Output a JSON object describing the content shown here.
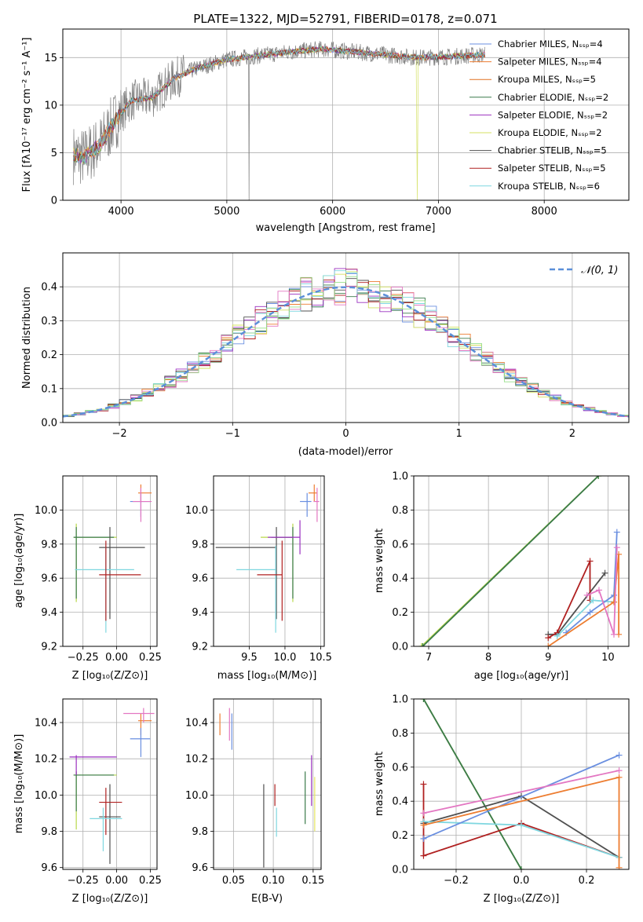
{
  "chart_data": [
    {
      "type": "line",
      "title": "PLATE=1322, MJD=52791, FIBERID=0178, z=0.071",
      "xlabel": "wavelength [Angstrom, rest frame]",
      "ylabel": "Flux [fλ10⁻¹⁷ erg cm⁻² s⁻¹ A⁻¹]",
      "xlim": [
        3450,
        8800
      ],
      "ylim": [
        0,
        18
      ],
      "xticks": [
        4000,
        5000,
        6000,
        7000,
        8000
      ],
      "yticks": [
        0,
        5,
        10,
        15
      ],
      "spectrum_anchor_points": {
        "x": [
          3550,
          3650,
          3800,
          3950,
          4100,
          4300,
          4500,
          4700,
          5000,
          5300,
          5600,
          5900,
          6200,
          6500,
          6800,
          7100,
          7400
        ],
        "y": [
          4.8,
          4.5,
          5.8,
          8.5,
          10.5,
          10.8,
          12.8,
          13.8,
          14.8,
          15.2,
          15.6,
          15.9,
          15.6,
          15.3,
          15.0,
          15.1,
          15.3
        ]
      },
      "legend_position": "upper right",
      "series": [
        {
          "name": "Chabrier MILES, Nₛₛₚ=4",
          "color": "#6a8fe0"
        },
        {
          "name": "Salpeter MILES, Nₛₛₚ=4",
          "color": "#ed7d31"
        },
        {
          "name": "Kroupa MILES, Nₛₛₚ=5",
          "color": "#e07020"
        },
        {
          "name": "Chabrier ELODIE, Nₛₛₚ=2",
          "color": "#3a7a4a"
        },
        {
          "name": "Salpeter ELODIE, Nₛₛₚ=2",
          "color": "#9b30c0"
        },
        {
          "name": "Kroupa ELODIE, Nₛₛₚ=2",
          "color": "#d4e060"
        },
        {
          "name": "Chabrier STELIB, Nₛₛₚ=5",
          "color": "#505050"
        },
        {
          "name": "Salpeter STELIB, Nₛₛₚ=5",
          "color": "#b02020"
        },
        {
          "name": "Kroupa STELIB, Nₛₛₚ=6",
          "color": "#7fd7e0"
        }
      ]
    },
    {
      "type": "histogram",
      "xlabel": "(data-model)/error",
      "ylabel": "Normed distribution",
      "xlim": [
        -2.5,
        2.5
      ],
      "ylim": [
        0,
        0.5
      ],
      "xticks": [
        -2,
        -1,
        0,
        1,
        2
      ],
      "yticks": [
        0.0,
        0.1,
        0.2,
        0.3,
        0.4
      ],
      "bin_width": 0.1,
      "legend": "𝒩(0, 1)",
      "normal_curve": {
        "mean": 0,
        "std": 1,
        "color": "#5b8fd9"
      },
      "series_colors": [
        "#6a8fe0",
        "#ed7d31",
        "#3a7a4a",
        "#9b30c0",
        "#d4e060",
        "#505050",
        "#b02020",
        "#7fd7e0",
        "#e377c2",
        "#98df8a"
      ]
    },
    {
      "type": "errorbar",
      "xlabel": "Z [log₁₀(Z/Z⊙)]",
      "ylabel": "age  [log₁₀(age/yr)]",
      "xlim": [
        -0.4,
        0.3
      ],
      "ylim": [
        9.2,
        10.2
      ],
      "xticks": [
        -0.25,
        0.0,
        0.25
      ],
      "yticks": [
        9.2,
        9.4,
        9.6,
        9.8,
        10.0
      ],
      "points": [
        {
          "x": -0.3,
          "y": 9.84,
          "xerr": [
            0.02,
            0.3
          ],
          "yerr": [
            0.38,
            0.08
          ],
          "color": "#b8d84a"
        },
        {
          "x": -0.3,
          "y": 9.84,
          "xerr": [
            0.02,
            0.28
          ],
          "yerr": [
            0.36,
            0.06
          ],
          "color": "#3a7a4a"
        },
        {
          "x": -0.05,
          "y": 9.78,
          "xerr": [
            0.08,
            0.26
          ],
          "yerr": [
            0.42,
            0.12
          ],
          "color": "#505050"
        },
        {
          "x": -0.08,
          "y": 9.65,
          "xerr": [
            0.23,
            0.21
          ],
          "yerr": [
            0.37,
            0.14
          ],
          "color": "#7fd7e0"
        },
        {
          "x": -0.08,
          "y": 9.62,
          "xerr": [
            0.05,
            0.26
          ],
          "yerr": [
            0.27,
            0.2
          ],
          "color": "#b02020"
        },
        {
          "x": 0.18,
          "y": 10.1,
          "xerr": [
            0.02,
            0.08
          ],
          "yerr": [
            0.05,
            0.05
          ],
          "color": "#ed7d31"
        },
        {
          "x": 0.18,
          "y": 10.05,
          "xerr": [
            0.08,
            0.07
          ],
          "yerr": [
            0.09,
            0.05
          ],
          "color": "#6a8fe0"
        },
        {
          "x": 0.18,
          "y": 10.05,
          "xerr": [
            0.06,
            0.08
          ],
          "yerr": [
            0.12,
            0.08
          ],
          "color": "#e377c2"
        }
      ]
    },
    {
      "type": "errorbar",
      "xlabel": "mass [log₁₀(M/M⊙)]",
      "xlim": [
        9.0,
        10.55
      ],
      "ylim": [
        9.2,
        10.2
      ],
      "xticks": [
        9.5,
        10.0,
        10.5
      ],
      "yticks": [
        9.2,
        9.4,
        9.6,
        9.8,
        10.0
      ],
      "points": [
        {
          "x": 10.11,
          "y": 9.84,
          "xerr": [
            0.45,
            0.0
          ],
          "yerr": [
            0.38,
            0.08
          ],
          "color": "#b8d84a"
        },
        {
          "x": 10.11,
          "y": 9.84,
          "xerr": [
            0.3,
            0.0
          ],
          "yerr": [
            0.36,
            0.06
          ],
          "color": "#3a7a4a"
        },
        {
          "x": 9.88,
          "y": 9.78,
          "xerr": [
            0.85,
            0.0
          ],
          "yerr": [
            0.42,
            0.12
          ],
          "color": "#505050"
        },
        {
          "x": 9.87,
          "y": 9.65,
          "xerr": [
            0.55,
            0.0
          ],
          "yerr": [
            0.37,
            0.14
          ],
          "color": "#7fd7e0"
        },
        {
          "x": 9.96,
          "y": 9.62,
          "xerr": [
            0.35,
            0.0
          ],
          "yerr": [
            0.27,
            0.2
          ],
          "color": "#b02020"
        },
        {
          "x": 10.21,
          "y": 9.84,
          "xerr": [
            0.45,
            0.0
          ],
          "yerr": [
            0.1,
            0.1
          ],
          "color": "#9b30c0"
        },
        {
          "x": 10.41,
          "y": 10.1,
          "xerr": [
            0.08,
            0.04
          ],
          "yerr": [
            0.05,
            0.05
          ],
          "color": "#ed7d31"
        },
        {
          "x": 10.31,
          "y": 10.05,
          "xerr": [
            0.1,
            0.06
          ],
          "yerr": [
            0.09,
            0.05
          ],
          "color": "#6a8fe0"
        },
        {
          "x": 10.45,
          "y": 10.05,
          "xerr": [
            0.05,
            0.03
          ],
          "yerr": [
            0.12,
            0.08
          ],
          "color": "#e377c2"
        }
      ]
    },
    {
      "type": "line",
      "xlabel": "age  [log₁₀(age/yr)]",
      "ylabel": "mass weight",
      "xlim": [
        6.75,
        10.35
      ],
      "ylim": [
        0,
        1
      ],
      "xticks": [
        7,
        8,
        9,
        10
      ],
      "yticks": [
        0.0,
        0.2,
        0.4,
        0.6,
        0.8,
        1.0
      ],
      "series": [
        {
          "color": "#b8d84a",
          "x": [
            6.88,
            9.84
          ],
          "y": [
            0.0,
            1.0
          ]
        },
        {
          "color": "#3a7a4a",
          "x": [
            6.9,
            9.84
          ],
          "y": [
            0.0,
            1.0
          ]
        },
        {
          "color": "#505050",
          "x": [
            9.0,
            9.15,
            9.95
          ],
          "y": [
            0.07,
            0.07,
            0.43
          ]
        },
        {
          "color": "#b02020",
          "x": [
            9.0,
            9.15,
            9.7,
            9.7
          ],
          "y": [
            0.05,
            0.08,
            0.5,
            0.27
          ]
        },
        {
          "color": "#7fd7e0",
          "x": [
            9.15,
            9.75,
            10.1
          ],
          "y": [
            0.06,
            0.27,
            0.26
          ]
        },
        {
          "color": "#6a8fe0",
          "x": [
            9.3,
            9.7,
            10.1,
            10.15
          ],
          "y": [
            0.08,
            0.2,
            0.3,
            0.67
          ]
        },
        {
          "color": "#ed7d31",
          "x": [
            9.0,
            10.1,
            10.18,
            10.18
          ],
          "y": [
            0.0,
            0.26,
            0.54,
            0.07
          ]
        },
        {
          "color": "#e377c2",
          "x": [
            9.65,
            9.85,
            10.1,
            10.15
          ],
          "y": [
            0.3,
            0.33,
            0.07,
            0.58
          ]
        }
      ]
    },
    {
      "type": "errorbar",
      "xlabel": "Z [log₁₀(Z/Z⊙)]",
      "ylabel": "mass [log₁₀(M/M⊙)]",
      "xlim": [
        -0.4,
        0.3
      ],
      "ylim": [
        9.59,
        10.53
      ],
      "xticks": [
        -0.25,
        0.0,
        0.25
      ],
      "yticks": [
        9.6,
        9.8,
        10.0,
        10.2,
        10.4
      ],
      "points": [
        {
          "x": -0.3,
          "y": 10.11,
          "xerr": [
            0.02,
            0.3
          ],
          "yerr": [
            0.3,
            0.02
          ],
          "color": "#b8d84a"
        },
        {
          "x": -0.3,
          "y": 10.11,
          "xerr": [
            0.02,
            0.28
          ],
          "yerr": [
            0.2,
            0.02
          ],
          "color": "#3a7a4a"
        },
        {
          "x": -0.3,
          "y": 10.21,
          "xerr": [
            0.05,
            0.3
          ],
          "yerr": [
            0.1,
            0.01
          ],
          "color": "#9b30c0"
        },
        {
          "x": -0.05,
          "y": 9.88,
          "xerr": [
            0.08,
            0.08
          ],
          "yerr": [
            0.26,
            0.18
          ],
          "color": "#505050"
        },
        {
          "x": -0.08,
          "y": 9.96,
          "xerr": [
            0.05,
            0.12
          ],
          "yerr": [
            0.18,
            0.08
          ],
          "color": "#b02020"
        },
        {
          "x": -0.1,
          "y": 9.87,
          "xerr": [
            0.1,
            0.14
          ],
          "yerr": [
            0.18,
            0.06
          ],
          "color": "#7fd7e0"
        },
        {
          "x": 0.18,
          "y": 10.41,
          "xerr": [
            0.02,
            0.08
          ],
          "yerr": [
            0.08,
            0.04
          ],
          "color": "#ed7d31"
        },
        {
          "x": 0.18,
          "y": 10.31,
          "xerr": [
            0.08,
            0.07
          ],
          "yerr": [
            0.1,
            0.06
          ],
          "color": "#6a8fe0"
        },
        {
          "x": 0.2,
          "y": 10.45,
          "xerr": [
            0.15,
            0.08
          ],
          "yerr": [
            0.05,
            0.03
          ],
          "color": "#e377c2"
        }
      ]
    },
    {
      "type": "errorbar",
      "xlabel": "E(B-V)",
      "xlim": [
        0.025,
        0.16
      ],
      "ylim": [
        9.59,
        10.53
      ],
      "xticks": [
        0.05,
        0.1,
        0.15
      ],
      "yticks": [
        9.6,
        9.8,
        10.0,
        10.2,
        10.4
      ],
      "points": [
        {
          "x": 0.033,
          "y": 10.41,
          "yerr": [
            0.08,
            0.04
          ],
          "color": "#ed7d31"
        },
        {
          "x": 0.045,
          "y": 10.4,
          "yerr": [
            0.1,
            0.08
          ],
          "color": "#e377c2"
        },
        {
          "x": 0.048,
          "y": 10.35,
          "yerr": [
            0.1,
            0.1
          ],
          "color": "#6a8fe0"
        },
        {
          "x": 0.088,
          "y": 9.86,
          "yerr": [
            0.26,
            0.2
          ],
          "color": "#505050"
        },
        {
          "x": 0.102,
          "y": 9.97,
          "yerr": [
            0.03,
            0.09
          ],
          "color": "#b02020"
        },
        {
          "x": 0.104,
          "y": 9.87,
          "yerr": [
            0.1,
            0.06
          ],
          "color": "#7fd7e0"
        },
        {
          "x": 0.14,
          "y": 9.9,
          "yerr": [
            0.06,
            0.23
          ],
          "color": "#3a7a4a"
        },
        {
          "x": 0.148,
          "y": 10.04,
          "yerr": [
            0.1,
            0.18
          ],
          "color": "#9b30c0"
        },
        {
          "x": 0.152,
          "y": 9.95,
          "yerr": [
            0.15,
            0.15
          ],
          "color": "#e8e860"
        }
      ]
    },
    {
      "type": "line",
      "xlabel": "Z [log₁₀(Z/Z⊙)]",
      "ylabel": "mass weight",
      "xlim": [
        -0.33,
        0.33
      ],
      "ylim": [
        0,
        1
      ],
      "xticks": [
        -0.2,
        0.0,
        0.2
      ],
      "yticks": [
        0.0,
        0.2,
        0.4,
        0.6,
        0.8,
        1.0
      ],
      "series": [
        {
          "color": "#b8d84a",
          "x": [
            -0.3,
            0.0
          ],
          "y": [
            1.0,
            0.0
          ]
        },
        {
          "color": "#3a7a4a",
          "x": [
            -0.3,
            0.0
          ],
          "y": [
            1.0,
            0.0
          ]
        },
        {
          "color": "#505050",
          "x": [
            -0.3,
            0.0,
            0.3
          ],
          "y": [
            0.27,
            0.43,
            0.07
          ]
        },
        {
          "color": "#b02020",
          "x": [
            -0.3,
            -0.3,
            0.0,
            0.3
          ],
          "y": [
            0.5,
            0.08,
            0.27,
            0.07
          ]
        },
        {
          "color": "#7fd7e0",
          "x": [
            -0.3,
            0.0,
            0.3
          ],
          "y": [
            0.28,
            0.26,
            0.07
          ]
        },
        {
          "color": "#6a8fe0",
          "x": [
            -0.3,
            0.3
          ],
          "y": [
            0.18,
            0.67
          ]
        },
        {
          "color": "#ed7d31",
          "x": [
            -0.3,
            0.3,
            0.3
          ],
          "y": [
            0.26,
            0.54,
            0.01
          ]
        },
        {
          "color": "#e377c2",
          "x": [
            -0.3,
            0.3
          ],
          "y": [
            0.33,
            0.58
          ]
        }
      ]
    }
  ]
}
